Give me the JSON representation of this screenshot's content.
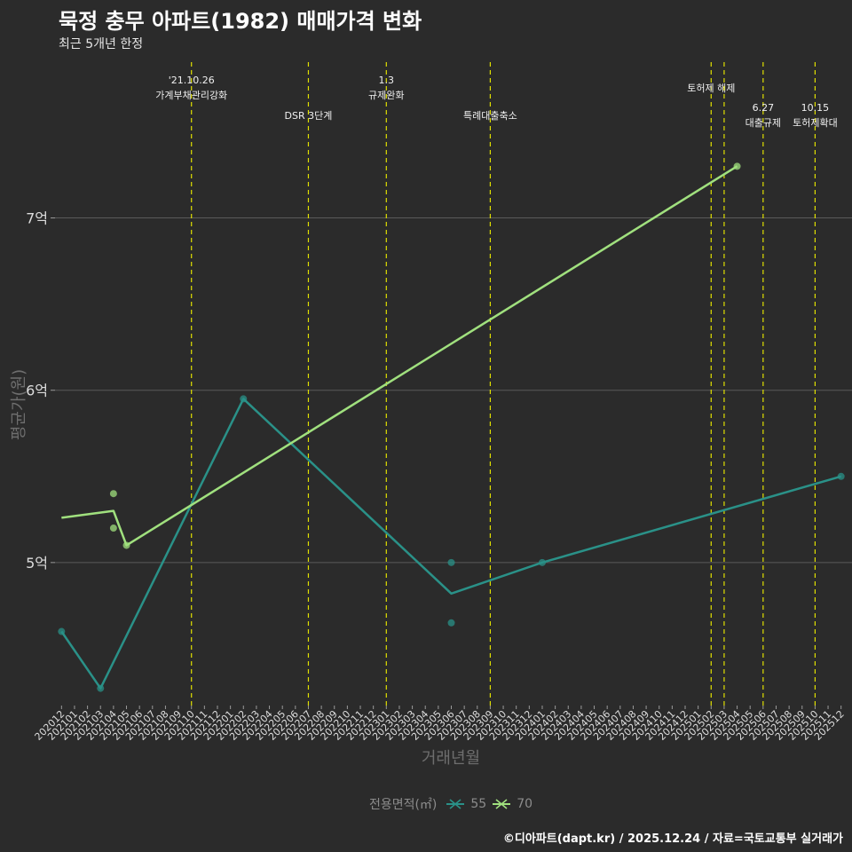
{
  "header": {
    "title": "묵정 충무 아파트(1982) 매매가격 변화",
    "subtitle": "최근 5개년 한정"
  },
  "caption": "©디아파트(dapt.kr) / 2025.12.24 / 자료=국토교통부 실거래가",
  "colors": {
    "background": "#2b2b2b",
    "grid": "#5a5a5a",
    "series_55": "#2a9188",
    "series_70": "#a0e07e",
    "event_line": "#e0e000"
  },
  "chart_data": {
    "type": "line",
    "title": "묵정 충무 아파트(1982) 매매가격 변화",
    "subtitle": "최근 5개년 한정",
    "xlabel": "거래년월",
    "ylabel": "평균가(원)",
    "ylim": [
      4.17,
      7.93
    ],
    "y_ticks": [
      {
        "value": 5,
        "label": "5억"
      },
      {
        "value": 6,
        "label": "6억"
      },
      {
        "value": 7,
        "label": "7억"
      }
    ],
    "categories": [
      "202012",
      "202101",
      "202102",
      "202103",
      "202104",
      "202105",
      "202106",
      "202107",
      "202108",
      "202109",
      "202110",
      "202111",
      "202112",
      "202201",
      "202202",
      "202203",
      "202204",
      "202205",
      "202206",
      "202207",
      "202208",
      "202209",
      "202210",
      "202211",
      "202212",
      "202301",
      "202302",
      "202303",
      "202304",
      "202305",
      "202306",
      "202307",
      "202308",
      "202309",
      "202310",
      "202311",
      "202312",
      "202401",
      "202402",
      "202403",
      "202404",
      "202405",
      "202406",
      "202407",
      "202408",
      "202409",
      "202410",
      "202411",
      "202412",
      "202501",
      "202502",
      "202503",
      "202504",
      "202505",
      "202506",
      "202507",
      "202508",
      "202509",
      "202510",
      "202511",
      "202512"
    ],
    "legend_title": "전용면적(㎡)",
    "series": [
      {
        "name": "55",
        "line": [
          [
            "202012",
            4.6
          ],
          [
            "202103",
            4.27
          ],
          [
            "202202",
            5.95
          ],
          [
            "202306",
            4.82
          ],
          [
            "202401",
            5.0
          ],
          [
            "202512",
            5.5
          ]
        ],
        "points": [
          [
            "202012",
            4.6
          ],
          [
            "202103",
            4.27
          ],
          [
            "202202",
            5.95
          ],
          [
            "202306",
            5.0
          ],
          [
            "202306",
            4.65
          ],
          [
            "202401",
            5.0
          ],
          [
            "202512",
            5.5
          ]
        ]
      },
      {
        "name": "70",
        "line": [
          [
            "202012",
            5.26
          ],
          [
            "202104",
            5.3
          ],
          [
            "202105",
            5.1
          ],
          [
            "202504",
            7.3
          ]
        ],
        "points": [
          [
            "202104",
            5.4
          ],
          [
            "202104",
            5.2
          ],
          [
            "202105",
            5.1
          ],
          [
            "202504",
            7.3
          ]
        ]
      }
    ],
    "events": [
      {
        "x": "202110",
        "lines": [
          "'21.10.26",
          "가계부채관리강화"
        ],
        "tier": 1
      },
      {
        "x": "202207",
        "lines": [
          "DSR 3단계"
        ],
        "tier": 2
      },
      {
        "x": "202301",
        "lines": [
          "1.3",
          "규제완화"
        ],
        "tier": 1
      },
      {
        "x": "202309",
        "lines": [
          "특례대출축소"
        ],
        "tier": 2
      },
      {
        "x": "202502",
        "lines": [
          "토허제 해제"
        ],
        "tier": 0
      },
      {
        "x": "202503",
        "lines": [],
        "tier": 0
      },
      {
        "x": "202506",
        "lines": [
          "6.27",
          "대출규제"
        ],
        "tier": 3
      },
      {
        "x": "202510",
        "lines": [
          "10.15",
          "토허제확대"
        ],
        "tier": 3
      }
    ]
  }
}
